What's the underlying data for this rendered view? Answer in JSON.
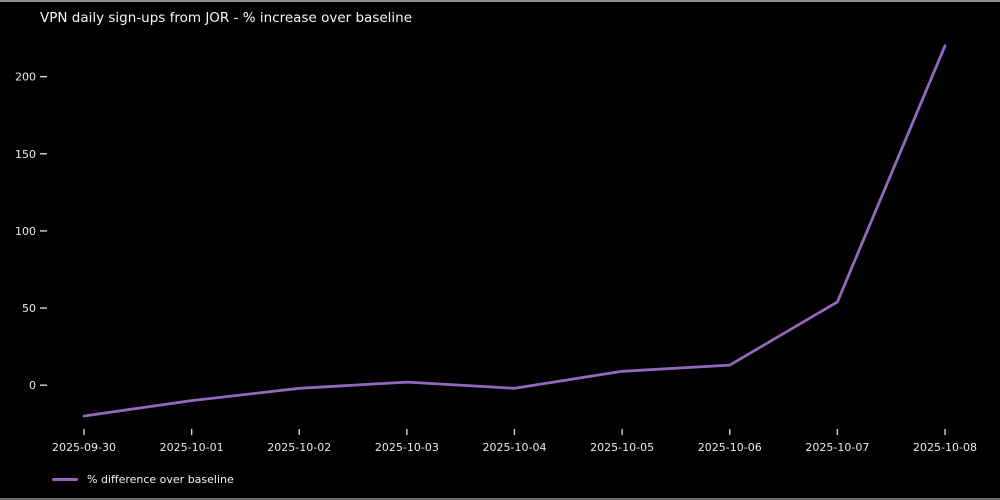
{
  "title": "VPN daily sign-ups from JOR - % increase over baseline",
  "legend": {
    "label": "% difference over baseline",
    "swatch_color": "#9467bd"
  },
  "colors": {
    "background": "#000000",
    "text": "#e9e9e9",
    "line": "#9467bd",
    "tick": "#d6d6d6"
  },
  "chart_data": {
    "type": "line",
    "title": "VPN daily sign-ups from JOR - % increase over baseline",
    "x": [
      "2025-09-30",
      "2025-10-01",
      "2025-10-02",
      "2025-10-03",
      "2025-10-04",
      "2025-10-05",
      "2025-10-06",
      "2025-10-07",
      "2025-10-08"
    ],
    "series": [
      {
        "name": "% difference over baseline",
        "color": "#9467bd",
        "values": [
          -20,
          -10,
          -2,
          2,
          -2,
          9,
          13,
          54,
          220
        ]
      }
    ],
    "xlabel": "",
    "ylabel": "",
    "yticks": [
      0,
      50,
      100,
      150,
      200
    ],
    "ylim": [
      -31,
      227
    ],
    "grid": false,
    "legend_position": "lower-left",
    "background": "black"
  }
}
